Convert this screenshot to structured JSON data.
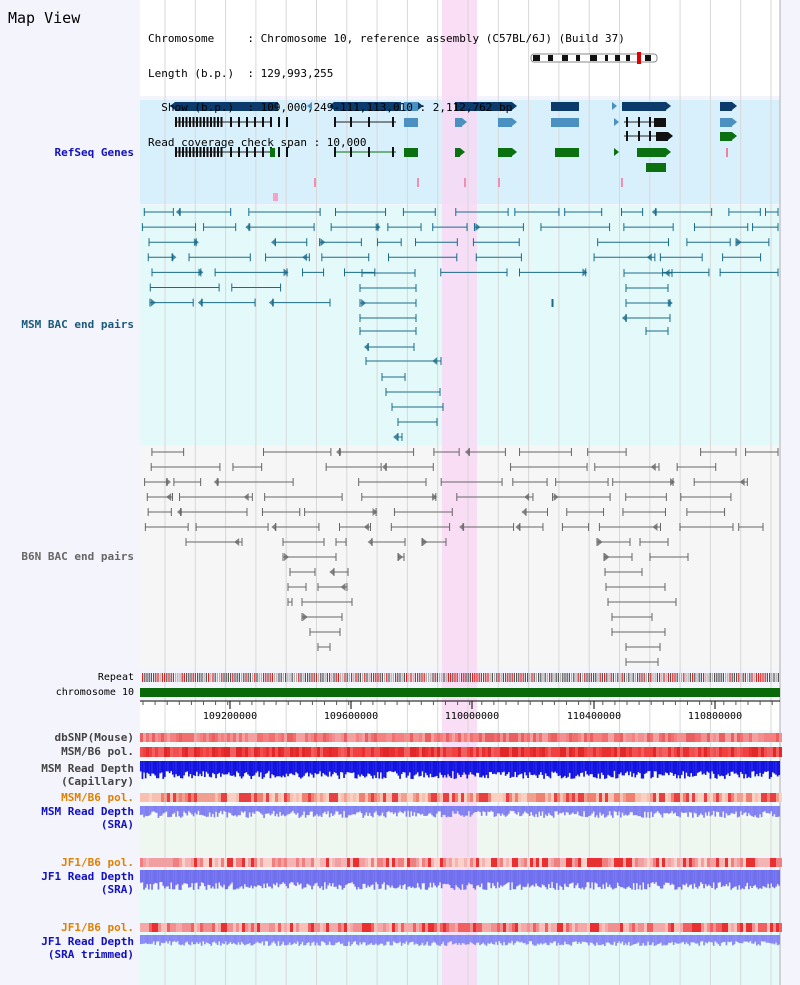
{
  "title": "Map View",
  "header": {
    "lines": [
      "Chromosome     : Chromosome 10, reference assembly (C57BL/6J) (Build 37)",
      "Length (b.p.)  : 129,993,255",
      "  Show (b.p.)  : 109,000,249-111,113,010 : 2,112,762 bp",
      "Read coverage check span : 10,000"
    ]
  },
  "tracks": {
    "refseq": {
      "label": "RefSeq Genes",
      "color": "#1010c0"
    },
    "msm_bac": {
      "label": "MSM BAC end pairs",
      "color": "#1a5a7a"
    },
    "b6n_bac": {
      "label": "B6N BAC end pairs",
      "color": "#666666"
    },
    "repeat": {
      "label": "Repeat"
    },
    "chromosome": {
      "label": "chromosome 10"
    },
    "dbsnp": {
      "label": "dbSNP(Mouse)",
      "color": "#444444"
    },
    "msm_b6_pol_1": {
      "label": "MSM/B6 pol.",
      "color": "#444444"
    },
    "msm_depth_cap": {
      "label": "MSM Read Depth\n(Capillary)",
      "color": "#444444"
    },
    "msm_b6_pol_2": {
      "label": "MSM/B6 pol.",
      "color": "#e08000"
    },
    "msm_depth_sra": {
      "label": "MSM Read Depth\n(SRA)",
      "color": "#1010c0"
    },
    "jf1_b6_pol_1": {
      "label": "JF1/B6 pol.",
      "color": "#e08000"
    },
    "jf1_depth_sra": {
      "label": "JF1 Read Depth\n(SRA)",
      "color": "#1010c0"
    },
    "jf1_b6_pol_2": {
      "label": "JF1/B6 pol.",
      "color": "#e08000"
    },
    "jf1_depth_trim": {
      "label": "JF1 Read Depth\n(SRA trimmed)",
      "color": "#1010c0"
    }
  },
  "axis": {
    "ticks": [
      "109200000",
      "109600000",
      "110000000",
      "110400000",
      "110800000"
    ]
  },
  "colors": {
    "highlight": "#f8d8f4",
    "refseq_bg": "#d8f0fc",
    "msm_bg": "#e4fafa",
    "gene_dark": "#0c3a6a",
    "gene_mid": "#4a90c0",
    "gene_green": "#0a7010",
    "chromosome_bar": "#0a6a0a"
  }
}
